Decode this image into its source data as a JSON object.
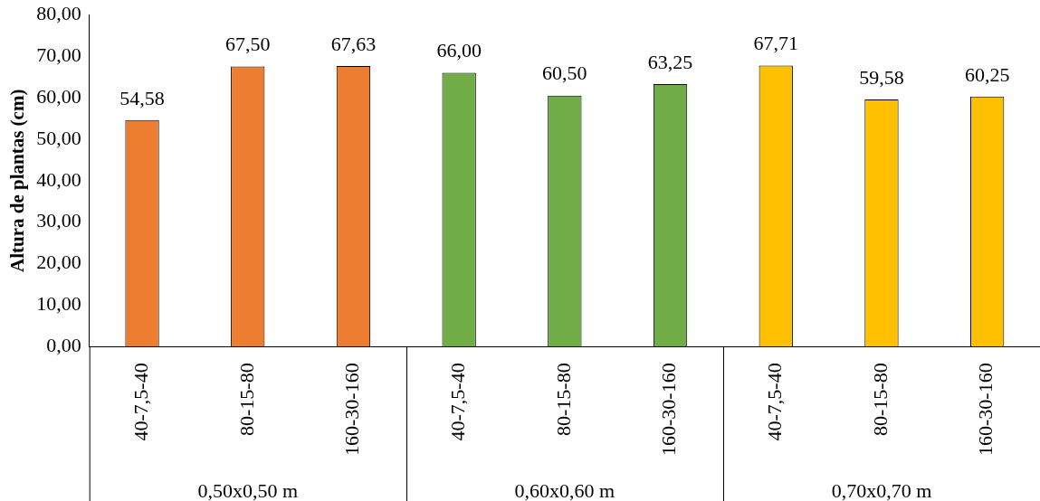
{
  "chart_data": {
    "type": "bar",
    "ylabel": "Altura de plantas (cm)",
    "categories": [
      "40-7,5-40",
      "80-15-80",
      "160-30-160",
      "40-7,5-40",
      "80-15-80",
      "160-30-160",
      "40-7,5-40",
      "80-15-80",
      "160-30-160"
    ],
    "values": [
      54.58,
      67.5,
      67.63,
      66.0,
      60.5,
      63.25,
      67.71,
      59.58,
      60.25
    ],
    "value_labels": [
      "54,58",
      "67,50",
      "67,63",
      "66,00",
      "60,50",
      "63,25",
      "67,71",
      "59,58",
      "60,25"
    ],
    "colors": [
      "#ed7d31",
      "#ed7d31",
      "#ed7d31",
      "#70ad47",
      "#70ad47",
      "#70ad47",
      "#ffc000",
      "#ffc000",
      "#ffc000"
    ],
    "ylim": [
      0,
      80
    ],
    "yticks": [
      {
        "value": 0,
        "label": "0,00"
      },
      {
        "value": 10,
        "label": "10,00"
      },
      {
        "value": 20,
        "label": "20,00"
      },
      {
        "value": 30,
        "label": "30,00"
      },
      {
        "value": 40,
        "label": "40,00"
      },
      {
        "value": 50,
        "label": "50,00"
      },
      {
        "value": 60,
        "label": "60,00"
      },
      {
        "value": 70,
        "label": "70,00"
      },
      {
        "value": 80,
        "label": "80,00"
      }
    ],
    "annotations": [
      "0,50x0,50 m",
      "0,60x0,60 m",
      "0,70x0,70 m"
    ],
    "legend": false
  }
}
